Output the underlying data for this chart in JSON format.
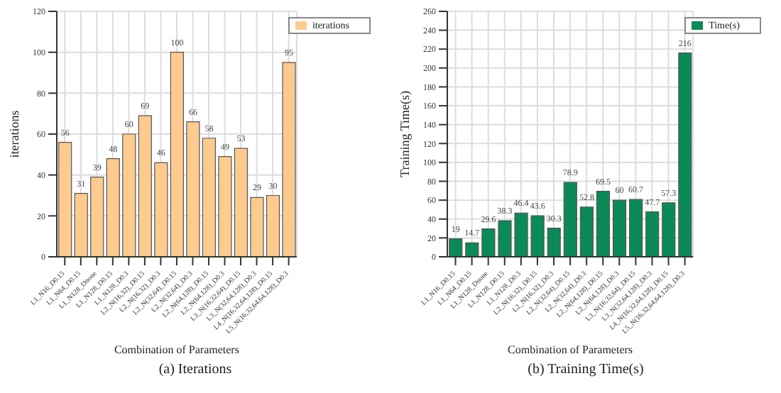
{
  "chart_data": [
    {
      "type": "bar",
      "title": "(a) Iterations",
      "xlabel": "Combination of Parameters",
      "ylabel": "iterations",
      "categories": [
        "L1_N16_D0.15",
        "L1_N64_D0.15",
        "L1_N128_Dnone",
        "L1_N128_D0.15",
        "L1_N128_D0.3",
        "L2_N(16,32)_D0.15",
        "L2_N(16,32)_D0.3",
        "L2_N(32,64)_D0.15",
        "L2_N(32,64)_D0.3",
        "L2_N(64,128)_D0.15",
        "L2_N(64,128)_D0.3",
        "L3_N(16,32,64)_D0.15",
        "L3_N(32,64,128)_D0.3",
        "L4_N(16,32,64,128)_D0.15",
        "L5_N(16,32,64,64,128)_D0.3"
      ],
      "series": [
        {
          "name": "iterations",
          "color": "#fdca90",
          "values": [
            56,
            31,
            39,
            48,
            60,
            69,
            46,
            100,
            66,
            58,
            49,
            53,
            29,
            30,
            95
          ]
        }
      ],
      "ylim": [
        0,
        120
      ],
      "yticks": [
        0,
        20,
        40,
        60,
        80,
        100,
        120
      ],
      "grid": true,
      "legend": "top right",
      "data_labels": true
    },
    {
      "type": "bar",
      "title": "(b) Training Time(s)",
      "xlabel": "Combination of Parameters",
      "ylabel": "Training Time(s)",
      "categories": [
        "L1_N16_D0.15",
        "L1_N64_D0.15",
        "L1_N128_Dnone",
        "L1_N128_D0.15",
        "L1_N128_D0.3",
        "L2_N(16,32)_D0.15",
        "L2_N(16,32)_D0.3",
        "L2_N(32,64)_D0.15",
        "L2_N(32,64)_D0.3",
        "L2_N(64,128)_D0.15",
        "L2_N(64,128)_D0.3",
        "L3_N(16,32,64)_D0.15",
        "L3_N(32,64,128)_D0.3",
        "L4_N(16,32,64,128)_D0.15",
        "L5_N(16,32,64,64,128)_D0.3"
      ],
      "series": [
        {
          "name": "Time(s)",
          "color": "#0b8a57",
          "values": [
            19,
            14.7,
            29.6,
            38.3,
            46.4,
            43.6,
            30.3,
            78.9,
            52.8,
            69.5,
            60,
            60.7,
            47.7,
            57.3,
            216
          ]
        }
      ],
      "ylim": [
        0,
        260
      ],
      "yticks": [
        0,
        20,
        40,
        60,
        80,
        100,
        120,
        140,
        160,
        180,
        200,
        220,
        240,
        260
      ],
      "grid": true,
      "legend": "top right",
      "data_labels": true
    }
  ]
}
